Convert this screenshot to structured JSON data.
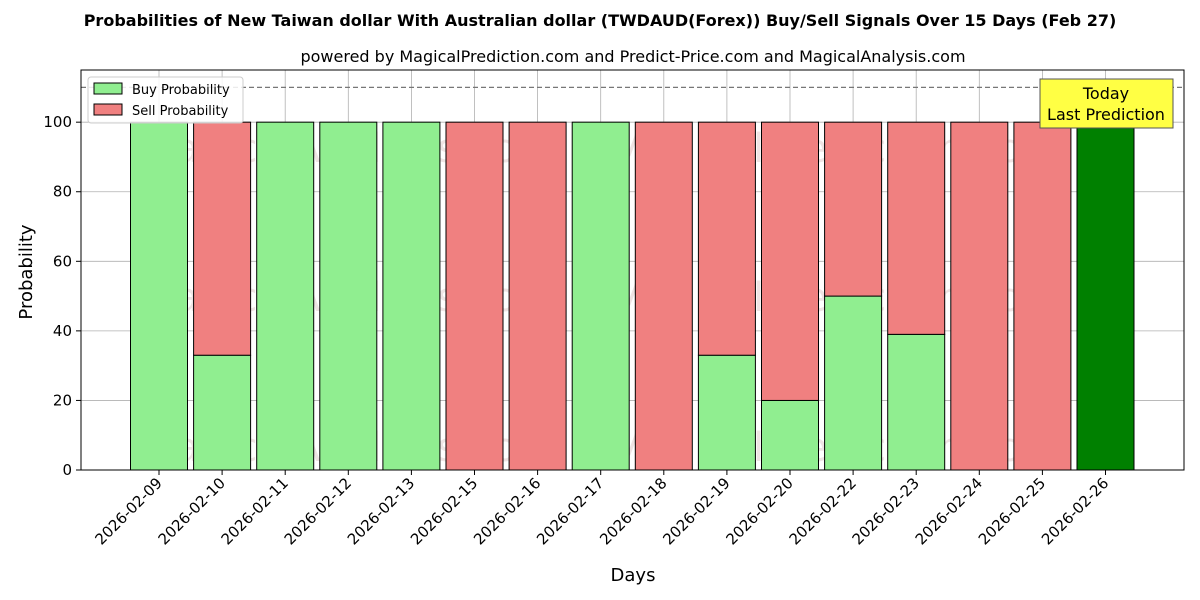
{
  "chart_data": {
    "type": "bar",
    "title": "Probabilities of New Taiwan dollar With Australian dollar (TWDAUD(Forex)) Buy/Sell Signals Over 15 Days (Feb 27)",
    "subtitle": "powered by MagicalPrediction.com and Predict-Price.com and MagicalAnalysis.com",
    "xlabel": "Days",
    "ylabel": "Probability",
    "ylim": [
      0,
      115
    ],
    "yticks": [
      0,
      20,
      40,
      60,
      80,
      100
    ],
    "grid": true,
    "legend_position": "top-left",
    "threshold_line": 110,
    "categories": [
      "2026-02-09",
      "2026-02-10",
      "2026-02-11",
      "2026-02-12",
      "2026-02-13",
      "2026-02-15",
      "2026-02-16",
      "2026-02-17",
      "2026-02-18",
      "2026-02-19",
      "2026-02-20",
      "2026-02-22",
      "2026-02-23",
      "2026-02-24",
      "2026-02-25",
      "2026-02-26"
    ],
    "series": [
      {
        "name": "Buy Probability",
        "color": "#90ee90",
        "values": [
          100,
          33,
          100,
          100,
          100,
          0,
          0,
          100,
          0,
          33,
          20,
          50,
          39,
          0,
          0,
          100
        ]
      },
      {
        "name": "Sell Probability",
        "color": "#f08080",
        "values": [
          0,
          67,
          0,
          0,
          0,
          100,
          100,
          0,
          100,
          67,
          80,
          50,
          61,
          100,
          100,
          0
        ]
      }
    ],
    "highlight": {
      "index": 15,
      "color": "#008000",
      "label_line1": "Today",
      "label_line2": "Last Prediction",
      "box_color": "#ffff44"
    },
    "watermarks": [
      "MagicalAnalysis.com",
      "MagicalPrediction.com"
    ]
  }
}
